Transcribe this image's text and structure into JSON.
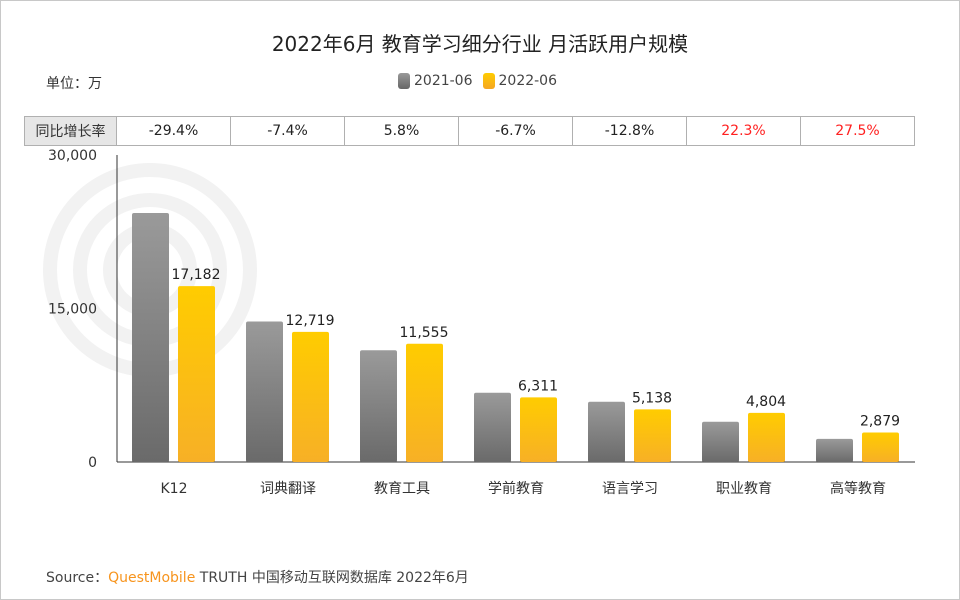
{
  "title": "2022年6月 教育学习细分行业 月活跃用户规模",
  "unit_label": "单位：万",
  "watermark": "QUEST MOBILE",
  "growth_row": {
    "header": "同比增长率",
    "values": [
      "-29.4%",
      "-7.4%",
      "5.8%",
      "-6.7%",
      "-12.8%",
      "22.3%",
      "27.5%"
    ]
  },
  "source": {
    "prefix": "Source：",
    "brand": "QuestMobile",
    "rest": " TRUTH 中国移动互联网数据库 2022年6月"
  },
  "colors": {
    "s2021": "#808080",
    "s2022": "#ffc000",
    "positive": "#ff2020"
  },
  "chart_data": {
    "type": "bar",
    "title": "2022年6月 教育学习细分行业 月活跃用户规模",
    "categories": [
      "K12",
      "词典翻译",
      "教育工具",
      "学前教育",
      "语言学习",
      "职业教育",
      "高等教育"
    ],
    "series": [
      {
        "name": "2021-06",
        "values": [
          24337,
          13735,
          10922,
          6764,
          5892,
          3928,
          2258
        ],
        "labeled": false
      },
      {
        "name": "2022-06",
        "values": [
          17182,
          12719,
          11555,
          6311,
          5138,
          4804,
          2879
        ],
        "labeled": true
      }
    ],
    "data_labels": [
      "17,182",
      "12,719",
      "11,555",
      "6,311",
      "5,138",
      "4,804",
      "2,879"
    ],
    "ylim": [
      0,
      30000
    ],
    "yticks": [
      "0",
      "15,000",
      "30,000"
    ],
    "ytick_values": [
      0,
      15000,
      30000
    ],
    "ylabel": "单位：万",
    "legend": "top-center",
    "grid": false
  }
}
